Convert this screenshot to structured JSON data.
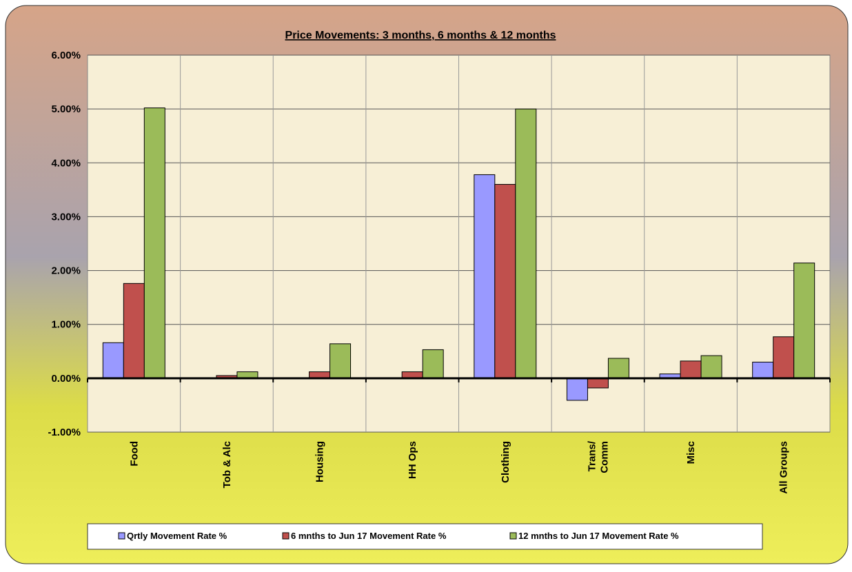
{
  "chart_data": {
    "type": "bar",
    "title": "Price Movements: 3 months, 6 months & 12 months",
    "categories": [
      "Food",
      "Tob & Alc",
      "Housing",
      "HH Ops",
      "Clothing",
      "Trans/\nComm",
      "Misc",
      "All Groups"
    ],
    "series": [
      {
        "name": "Qrtly Movement Rate %",
        "color": "#9999ff",
        "values": [
          0.66,
          0,
          0,
          0,
          3.78,
          -0.41,
          0.08,
          0.3
        ]
      },
      {
        "name": "6 mnths to Jun 17 Movement Rate %",
        "color": "#c0504d",
        "values": [
          1.76,
          0.05,
          0.12,
          0.12,
          3.6,
          -0.18,
          0.32,
          0.77
        ]
      },
      {
        "name": "12 mnths to Jun 17 Movement Rate %",
        "color": "#9bbb59",
        "values": [
          5.02,
          0.12,
          0.64,
          0.53,
          5.0,
          0.37,
          0.42,
          2.14
        ]
      }
    ],
    "ylim": [
      -1,
      6
    ],
    "yticks": [
      {
        "value": -1,
        "label": "-1.00%"
      },
      {
        "value": 0,
        "label": "0.00%"
      },
      {
        "value": 1,
        "label": "1.00%"
      },
      {
        "value": 2,
        "label": "2.00%"
      },
      {
        "value": 3,
        "label": "3.00%"
      },
      {
        "value": 4,
        "label": "4.00%"
      },
      {
        "value": 5,
        "label": "5.00%"
      },
      {
        "value": 6,
        "label": "6.00%"
      }
    ],
    "grid": true,
    "legend": "bottom"
  }
}
